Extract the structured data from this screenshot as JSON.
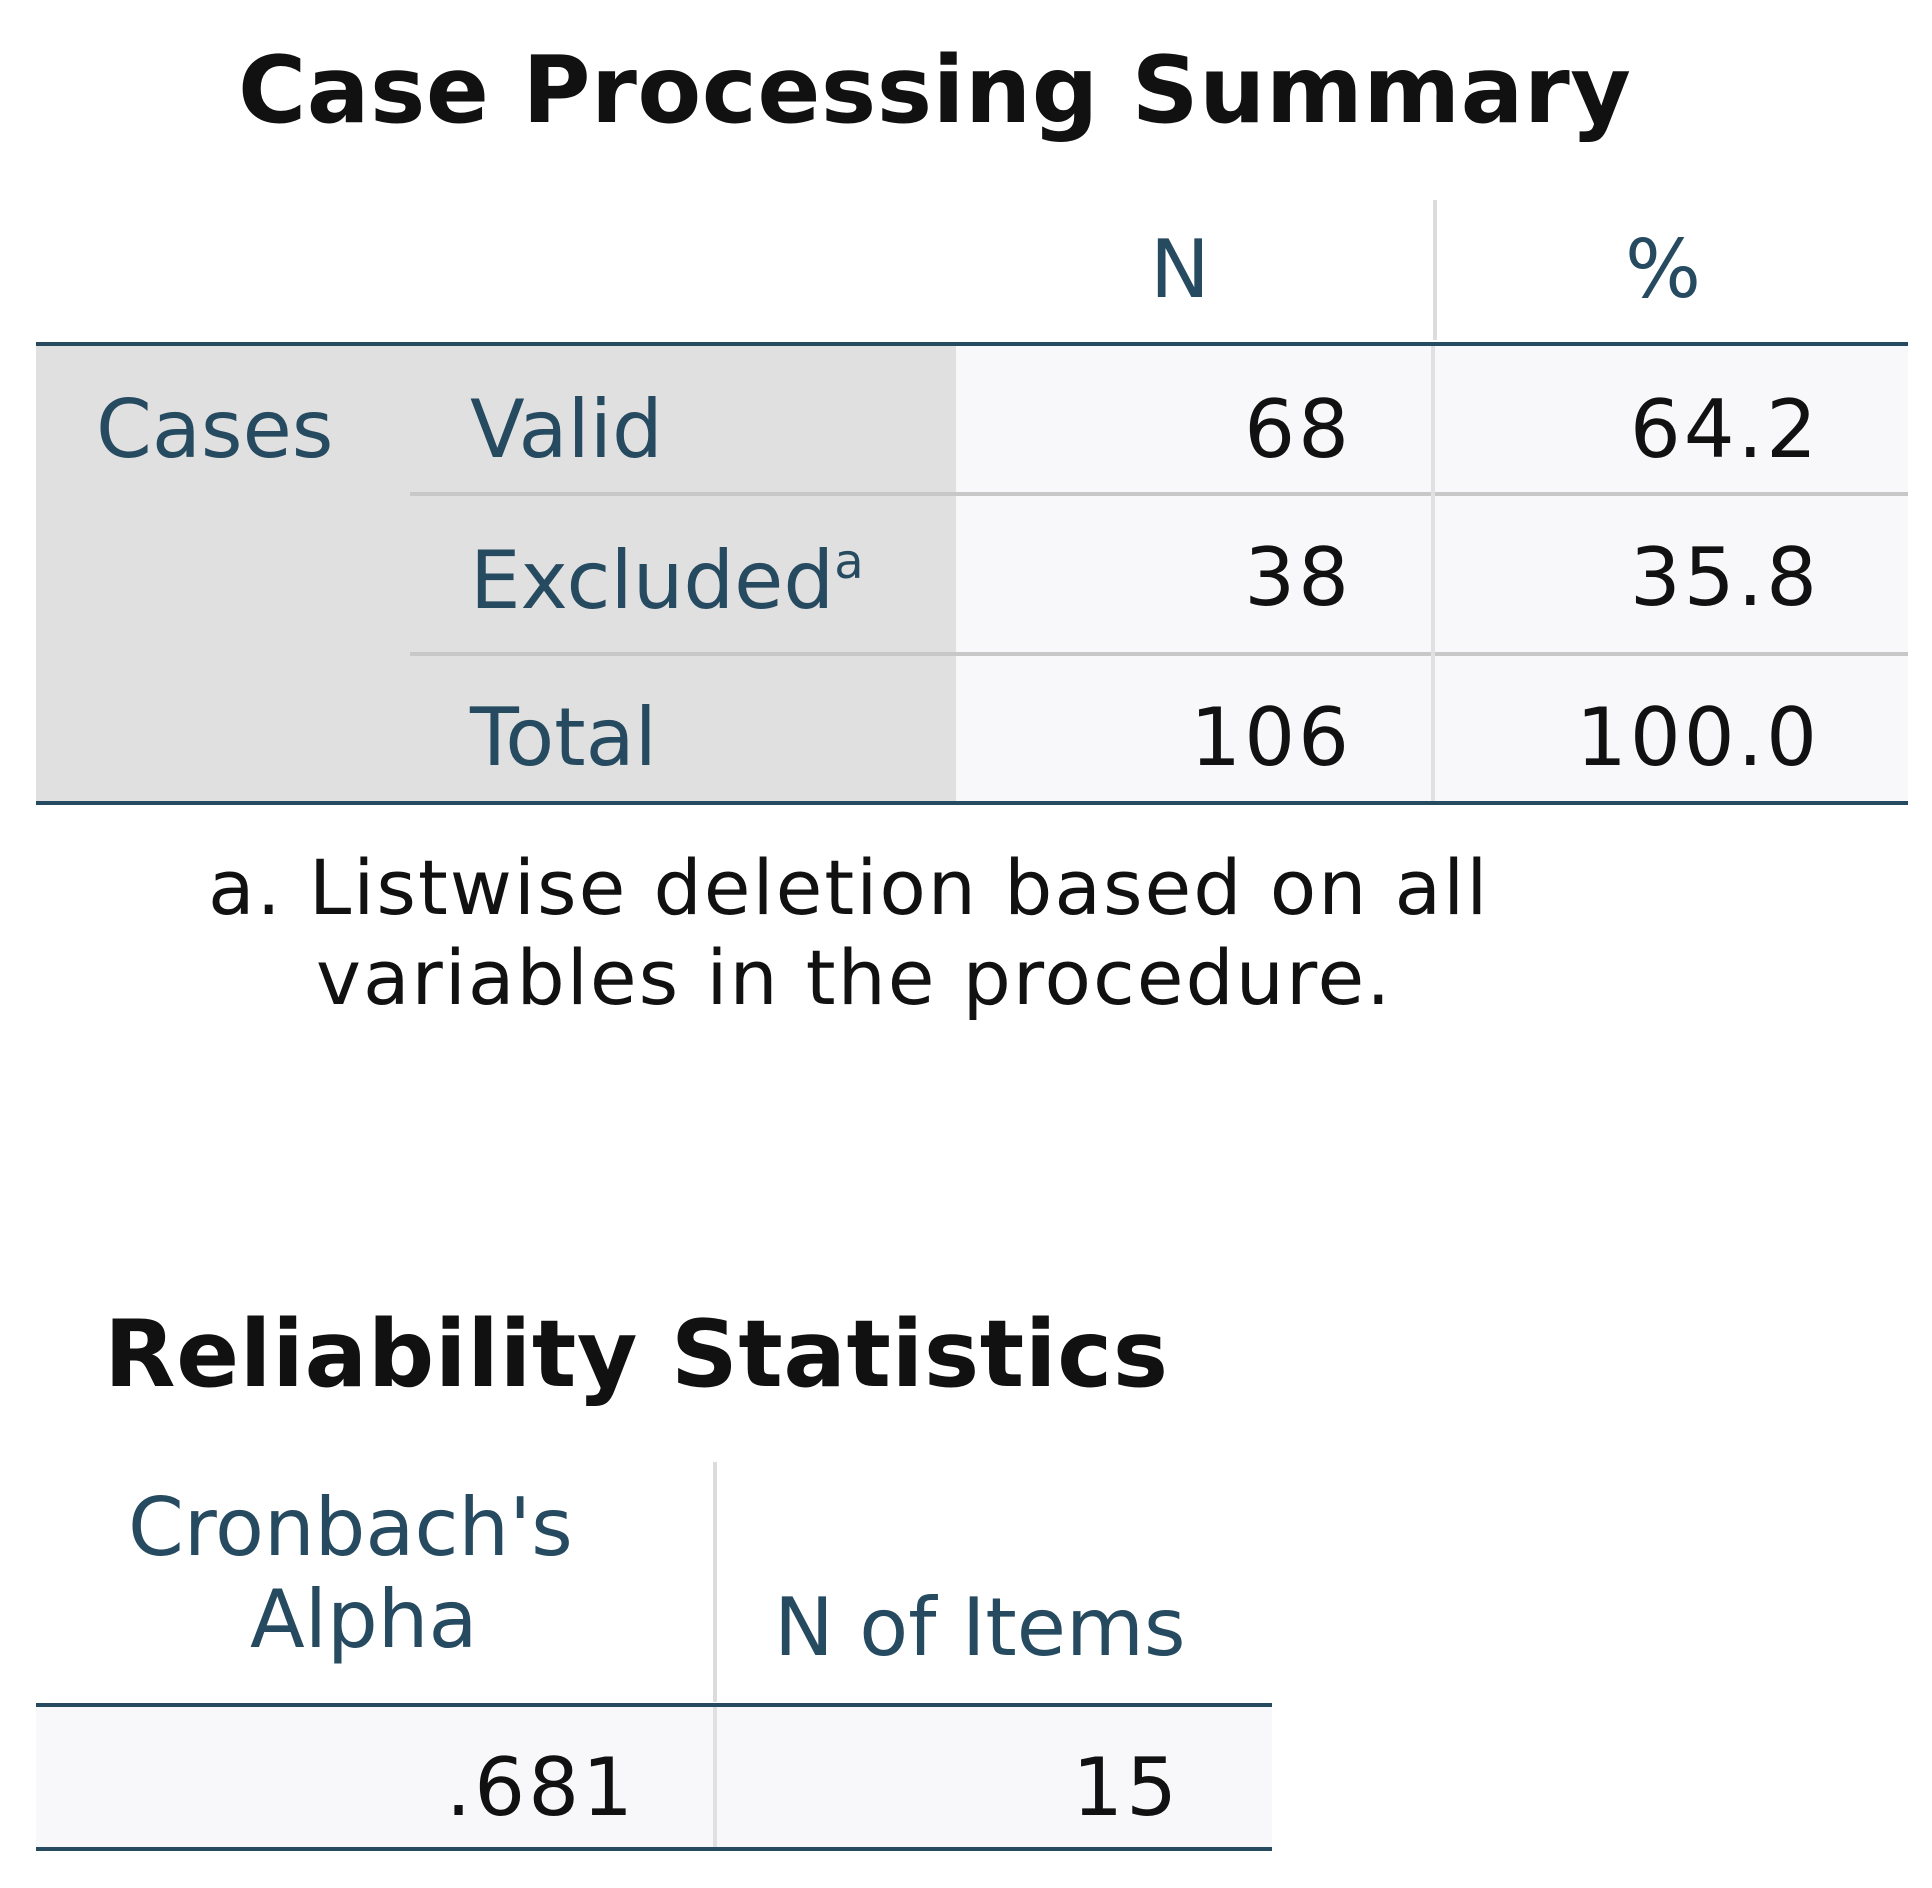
{
  "case_processing": {
    "title": "Case Processing Summary",
    "columns": [
      "N",
      "%"
    ],
    "group_label": "Cases",
    "rows": [
      {
        "label": "Valid",
        "sup": "",
        "n": "68",
        "pct": "64.2"
      },
      {
        "label": "Excluded",
        "sup": "a",
        "n": "38",
        "pct": "35.8"
      },
      {
        "label": "Total",
        "sup": "",
        "n": "106",
        "pct": "100.0"
      }
    ],
    "footnote_line1": "a. Listwise deletion based on all",
    "footnote_line2": "variables in the procedure."
  },
  "reliability": {
    "title": "Reliability Statistics",
    "col1_line1": "Cronbach's",
    "col1_line2": "Alpha",
    "col2": "N of Items",
    "alpha": ".681",
    "n_items": "15"
  },
  "colors": {
    "header_text": "#264a60",
    "rule": "#264a60",
    "label_bg": "#e0e0e0",
    "data_bg": "#f8f8fa"
  }
}
